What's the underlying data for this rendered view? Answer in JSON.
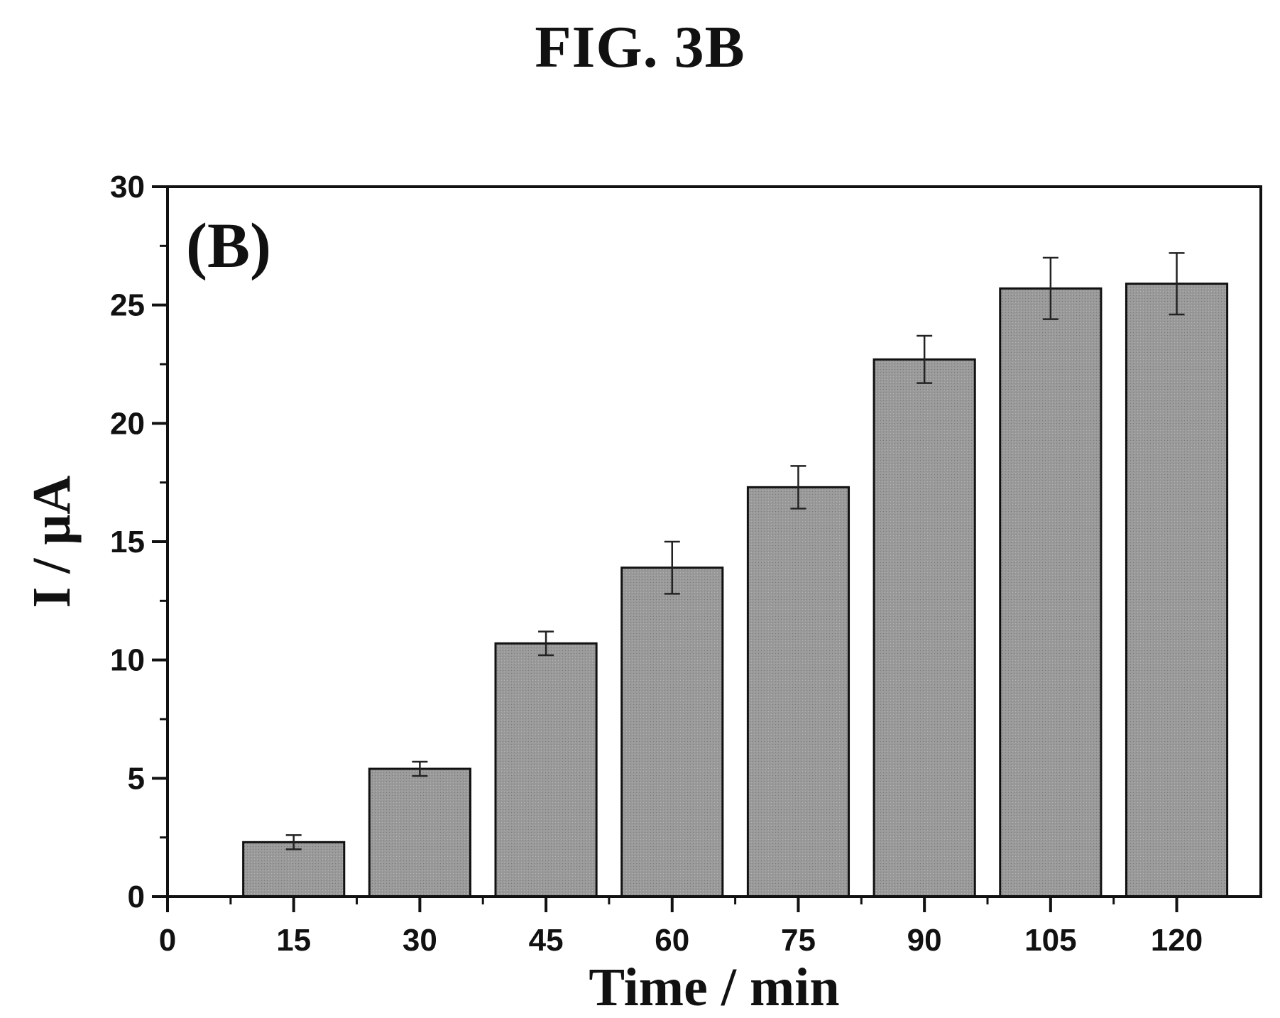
{
  "figure_title": "FIG. 3B",
  "chart_data": {
    "type": "bar",
    "panel_label": "(B)",
    "xlabel": "Time / min",
    "ylabel": "I / μA",
    "xlim": [
      0,
      130
    ],
    "ylim": [
      0,
      30
    ],
    "x_ticks": [
      0,
      15,
      30,
      45,
      60,
      75,
      90,
      105,
      120
    ],
    "y_ticks": [
      0,
      5,
      10,
      15,
      20,
      25,
      30
    ],
    "bar_width": 12,
    "categories": [
      15,
      30,
      45,
      60,
      75,
      90,
      105,
      120
    ],
    "values": [
      2.3,
      5.4,
      10.7,
      13.9,
      17.3,
      22.7,
      25.7,
      25.9
    ],
    "errors": [
      0.3,
      0.3,
      0.5,
      1.1,
      0.9,
      1.0,
      1.3,
      1.3
    ],
    "bar_color": "#9a9a9a",
    "grid": false,
    "legend": "none"
  }
}
